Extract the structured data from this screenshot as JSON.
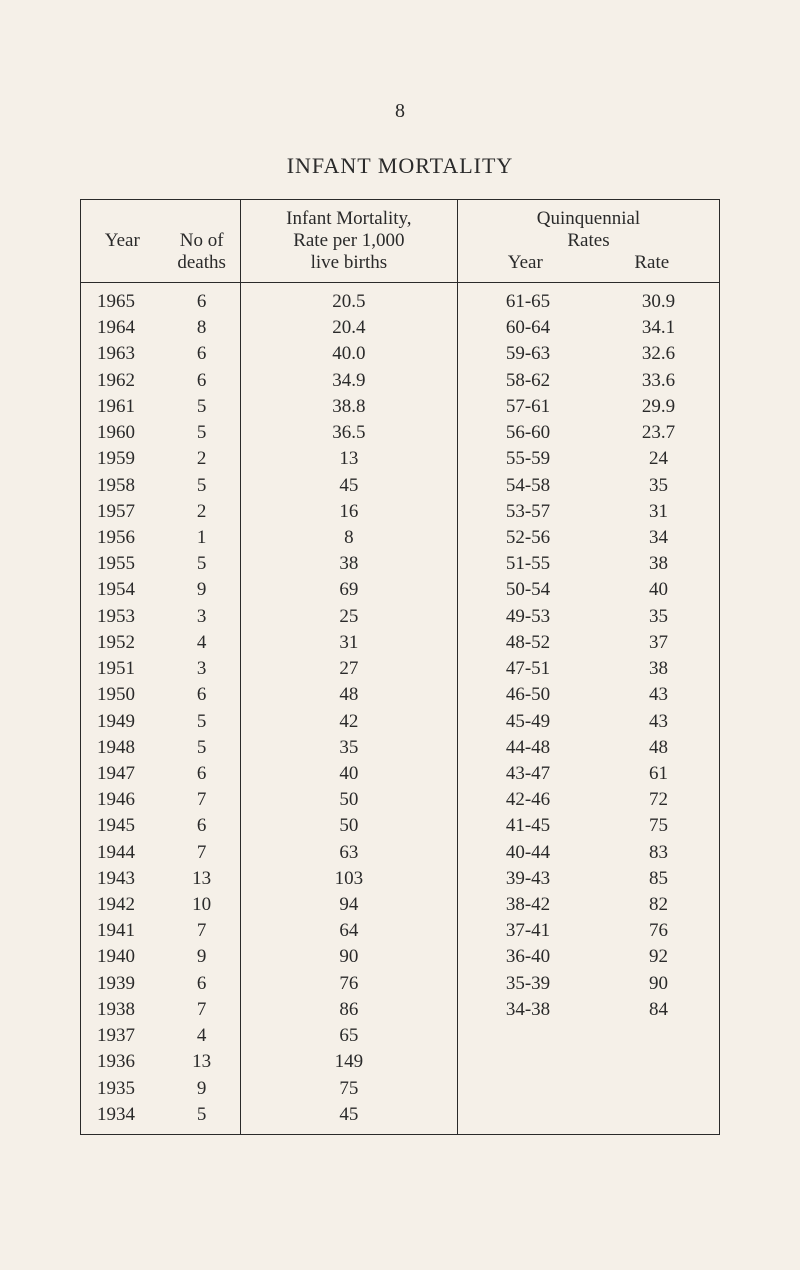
{
  "page_number": "8",
  "title": "INFANT MORTALITY",
  "headers": {
    "year": "Year",
    "deaths_line1": "No of",
    "deaths_line2": "deaths",
    "rate_line1": "Infant Mortality,",
    "rate_line2": "Rate per 1,000",
    "rate_line3": "live births",
    "quin_line1": "Quinquennial",
    "quin_line2": "Rates",
    "quin_year": "Year",
    "quin_rate": "Rate"
  },
  "rows": [
    {
      "year": "1965",
      "deaths": "6",
      "rate": "20.5",
      "qyear": "61-65",
      "qrate": "30.9"
    },
    {
      "year": "1964",
      "deaths": "8",
      "rate": "20.4",
      "qyear": "60-64",
      "qrate": "34.1"
    },
    {
      "year": "1963",
      "deaths": "6",
      "rate": "40.0",
      "qyear": "59-63",
      "qrate": "32.6"
    },
    {
      "year": "1962",
      "deaths": "6",
      "rate": "34.9",
      "qyear": "58-62",
      "qrate": "33.6"
    },
    {
      "year": "1961",
      "deaths": "5",
      "rate": "38.8",
      "qyear": "57-61",
      "qrate": "29.9"
    },
    {
      "year": "1960",
      "deaths": "5",
      "rate": "36.5",
      "qyear": "56-60",
      "qrate": "23.7"
    },
    {
      "year": "1959",
      "deaths": "2",
      "rate": "13",
      "qyear": "55-59",
      "qrate": "24"
    },
    {
      "year": "1958",
      "deaths": "5",
      "rate": "45",
      "qyear": "54-58",
      "qrate": "35"
    },
    {
      "year": "1957",
      "deaths": "2",
      "rate": "16",
      "qyear": "53-57",
      "qrate": "31"
    },
    {
      "year": "1956",
      "deaths": "1",
      "rate": "8",
      "qyear": "52-56",
      "qrate": "34"
    },
    {
      "year": "1955",
      "deaths": "5",
      "rate": "38",
      "qyear": "51-55",
      "qrate": "38"
    },
    {
      "year": "1954",
      "deaths": "9",
      "rate": "69",
      "qyear": "50-54",
      "qrate": "40"
    },
    {
      "year": "1953",
      "deaths": "3",
      "rate": "25",
      "qyear": "49-53",
      "qrate": "35"
    },
    {
      "year": "1952",
      "deaths": "4",
      "rate": "31",
      "qyear": "48-52",
      "qrate": "37"
    },
    {
      "year": "1951",
      "deaths": "3",
      "rate": "27",
      "qyear": "47-51",
      "qrate": "38"
    },
    {
      "year": "1950",
      "deaths": "6",
      "rate": "48",
      "qyear": "46-50",
      "qrate": "43"
    },
    {
      "year": "1949",
      "deaths": "5",
      "rate": "42",
      "qyear": "45-49",
      "qrate": "43"
    },
    {
      "year": "1948",
      "deaths": "5",
      "rate": "35",
      "qyear": "44-48",
      "qrate": "48"
    },
    {
      "year": "1947",
      "deaths": "6",
      "rate": "40",
      "qyear": "43-47",
      "qrate": "61"
    },
    {
      "year": "1946",
      "deaths": "7",
      "rate": "50",
      "qyear": "42-46",
      "qrate": "72"
    },
    {
      "year": "1945",
      "deaths": "6",
      "rate": "50",
      "qyear": "41-45",
      "qrate": "75"
    },
    {
      "year": "1944",
      "deaths": "7",
      "rate": "63",
      "qyear": "40-44",
      "qrate": "83"
    },
    {
      "year": "1943",
      "deaths": "13",
      "rate": "103",
      "qyear": "39-43",
      "qrate": "85"
    },
    {
      "year": "1942",
      "deaths": "10",
      "rate": "94",
      "qyear": "38-42",
      "qrate": "82"
    },
    {
      "year": "1941",
      "deaths": "7",
      "rate": "64",
      "qyear": "37-41",
      "qrate": "76"
    },
    {
      "year": "1940",
      "deaths": "9",
      "rate": "90",
      "qyear": "36-40",
      "qrate": "92"
    },
    {
      "year": "1939",
      "deaths": "6",
      "rate": "76",
      "qyear": "35-39",
      "qrate": "90"
    },
    {
      "year": "1938",
      "deaths": "7",
      "rate": "86",
      "qyear": "34-38",
      "qrate": "84"
    },
    {
      "year": "1937",
      "deaths": "4",
      "rate": "65",
      "qyear": "",
      "qrate": ""
    },
    {
      "year": "1936",
      "deaths": "13",
      "rate": "149",
      "qyear": "",
      "qrate": ""
    },
    {
      "year": "1935",
      "deaths": "9",
      "rate": "75",
      "qyear": "",
      "qrate": ""
    },
    {
      "year": "1934",
      "deaths": "5",
      "rate": "45",
      "qyear": "",
      "qrate": ""
    }
  ]
}
